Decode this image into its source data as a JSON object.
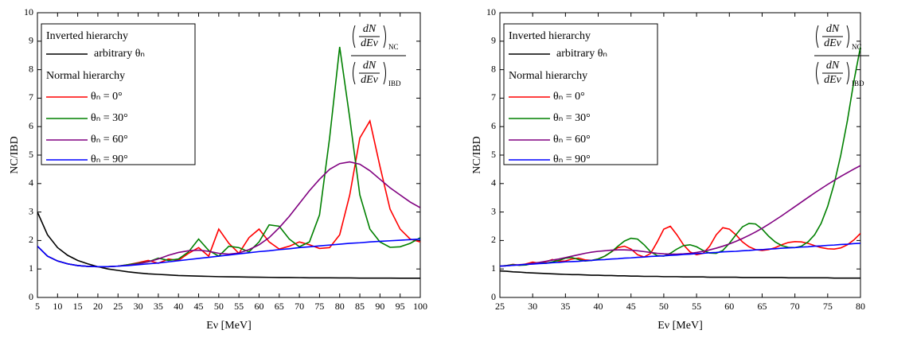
{
  "chart_data": [
    {
      "type": "line",
      "x_label": "Eν [MeV]",
      "y_label": "NC/IBD",
      "legend_headings": [
        "Inverted hierarchy",
        "Normal hierarchy"
      ],
      "annotation": {
        "numerator": {
          "top": "dN",
          "bottom": "dEν",
          "subscript": "NC"
        },
        "denominator": {
          "top": "dN",
          "bottom": "dEν",
          "subscript": "IBD"
        }
      },
      "xlim": [
        5,
        100
      ],
      "ylim": [
        0,
        10
      ],
      "xticks": [
        5,
        10,
        15,
        20,
        25,
        30,
        35,
        40,
        45,
        50,
        55,
        60,
        65,
        70,
        75,
        80,
        85,
        90,
        95,
        100
      ],
      "yticks": [
        0,
        1,
        2,
        3,
        4,
        5,
        6,
        7,
        8,
        9,
        10
      ],
      "x": [
        5,
        7.5,
        10,
        12.5,
        15,
        17.5,
        20,
        22.5,
        25,
        27.5,
        30,
        32.5,
        35,
        37.5,
        40,
        42.5,
        45,
        47.5,
        50,
        52.5,
        55,
        57.5,
        60,
        62.5,
        65,
        67.5,
        70,
        72.5,
        75,
        77.5,
        80,
        82.5,
        85,
        87.5,
        90,
        92.5,
        95,
        97.5,
        100
      ],
      "series": [
        {
          "name": "arbitrary θₙ",
          "color": "#000000",
          "values": [
            3.0,
            2.2,
            1.75,
            1.48,
            1.3,
            1.18,
            1.08,
            1.0,
            0.95,
            0.9,
            0.86,
            0.83,
            0.81,
            0.79,
            0.77,
            0.76,
            0.75,
            0.74,
            0.73,
            0.725,
            0.72,
            0.715,
            0.71,
            0.705,
            0.7,
            0.7,
            0.695,
            0.69,
            0.69,
            0.69,
            0.685,
            0.685,
            0.68,
            0.68,
            0.68,
            0.68,
            0.675,
            0.675,
            0.675
          ]
        },
        {
          "name": "θₙ =  0°",
          "color": "#ff0000",
          "values": [
            1.8,
            1.45,
            1.28,
            1.18,
            1.12,
            1.09,
            1.08,
            1.08,
            1.1,
            1.15,
            1.22,
            1.3,
            1.2,
            1.35,
            1.3,
            1.55,
            1.75,
            1.45,
            2.4,
            1.9,
            1.55,
            2.1,
            2.4,
            1.95,
            1.7,
            1.8,
            1.95,
            1.85,
            1.72,
            1.75,
            2.2,
            3.6,
            5.6,
            6.2,
            4.6,
            3.1,
            2.4,
            2.05,
            1.95
          ]
        },
        {
          "name": "θₙ = 30°",
          "color": "#008000",
          "values": [
            1.8,
            1.45,
            1.28,
            1.18,
            1.12,
            1.09,
            1.08,
            1.08,
            1.1,
            1.15,
            1.2,
            1.25,
            1.38,
            1.3,
            1.35,
            1.6,
            2.05,
            1.65,
            1.45,
            1.8,
            1.75,
            1.6,
            1.95,
            2.55,
            2.5,
            2.05,
            1.78,
            1.95,
            2.9,
            5.6,
            8.8,
            6.3,
            3.6,
            2.4,
            1.95,
            1.76,
            1.78,
            1.9,
            2.1
          ]
        },
        {
          "name": "θₙ = 60°",
          "color": "#800080",
          "values": [
            1.8,
            1.45,
            1.28,
            1.18,
            1.12,
            1.09,
            1.08,
            1.08,
            1.1,
            1.13,
            1.18,
            1.25,
            1.35,
            1.48,
            1.58,
            1.64,
            1.66,
            1.62,
            1.55,
            1.52,
            1.56,
            1.68,
            1.85,
            2.1,
            2.45,
            2.85,
            3.3,
            3.75,
            4.15,
            4.5,
            4.7,
            4.76,
            4.68,
            4.45,
            4.15,
            3.85,
            3.6,
            3.35,
            3.15
          ]
        },
        {
          "name": "θₙ = 90°",
          "color": "#0000ff",
          "values": [
            1.8,
            1.45,
            1.28,
            1.18,
            1.12,
            1.09,
            1.08,
            1.08,
            1.1,
            1.12,
            1.15,
            1.18,
            1.21,
            1.25,
            1.29,
            1.33,
            1.37,
            1.41,
            1.45,
            1.49,
            1.53,
            1.57,
            1.61,
            1.64,
            1.68,
            1.71,
            1.75,
            1.78,
            1.81,
            1.84,
            1.87,
            1.9,
            1.92,
            1.95,
            1.97,
            1.99,
            2.01,
            2.03,
            2.05
          ]
        }
      ]
    },
    {
      "type": "line",
      "x_label": "Eν [MeV]",
      "y_label": "NC/IBD",
      "legend_headings": [
        "Inverted hierarchy",
        "Normal hierarchy"
      ],
      "annotation": {
        "numerator": {
          "top": "dN",
          "bottom": "dEν",
          "subscript": "NC"
        },
        "denominator": {
          "top": "dN",
          "bottom": "dEν",
          "subscript": "IBD"
        }
      },
      "xlim": [
        25,
        80
      ],
      "ylim": [
        0,
        10
      ],
      "xticks": [
        25,
        30,
        35,
        40,
        45,
        50,
        55,
        60,
        65,
        70,
        75,
        80
      ],
      "yticks": [
        0,
        1,
        2,
        3,
        4,
        5,
        6,
        7,
        8,
        9,
        10
      ],
      "x": [
        25,
        26,
        27,
        28,
        29,
        30,
        31,
        32,
        33,
        34,
        35,
        36,
        37,
        38,
        39,
        40,
        41,
        42,
        43,
        44,
        45,
        46,
        47,
        48,
        49,
        50,
        51,
        52,
        53,
        54,
        55,
        56,
        57,
        58,
        59,
        60,
        61,
        62,
        63,
        64,
        65,
        66,
        67,
        68,
        69,
        70,
        71,
        72,
        73,
        74,
        75,
        76,
        77,
        78,
        79,
        80
      ],
      "series": [
        {
          "name": "arbitrary θₙ",
          "color": "#000000",
          "values": [
            0.93,
            0.92,
            0.9,
            0.89,
            0.87,
            0.86,
            0.85,
            0.84,
            0.83,
            0.82,
            0.81,
            0.8,
            0.8,
            0.79,
            0.78,
            0.78,
            0.77,
            0.77,
            0.76,
            0.76,
            0.75,
            0.75,
            0.74,
            0.74,
            0.74,
            0.73,
            0.73,
            0.73,
            0.72,
            0.72,
            0.72,
            0.72,
            0.71,
            0.71,
            0.71,
            0.71,
            0.71,
            0.7,
            0.7,
            0.7,
            0.7,
            0.7,
            0.7,
            0.7,
            0.69,
            0.69,
            0.69,
            0.69,
            0.69,
            0.69,
            0.69,
            0.68,
            0.68,
            0.68,
            0.68,
            0.68
          ]
        },
        {
          "name": "θₙ =  0°",
          "color": "#ff0000",
          "values": [
            1.1,
            1.12,
            1.16,
            1.13,
            1.18,
            1.24,
            1.2,
            1.25,
            1.33,
            1.27,
            1.28,
            1.35,
            1.38,
            1.32,
            1.3,
            1.35,
            1.45,
            1.6,
            1.75,
            1.8,
            1.7,
            1.5,
            1.42,
            1.55,
            1.95,
            2.4,
            2.5,
            2.2,
            1.85,
            1.6,
            1.5,
            1.55,
            1.8,
            2.2,
            2.45,
            2.4,
            2.2,
            1.95,
            1.78,
            1.68,
            1.65,
            1.68,
            1.75,
            1.85,
            1.93,
            1.96,
            1.95,
            1.9,
            1.82,
            1.75,
            1.71,
            1.7,
            1.74,
            1.85,
            2.02,
            2.25
          ]
        },
        {
          "name": "θₙ = 30°",
          "color": "#008000",
          "values": [
            1.1,
            1.12,
            1.15,
            1.13,
            1.14,
            1.2,
            1.22,
            1.2,
            1.25,
            1.3,
            1.38,
            1.4,
            1.33,
            1.28,
            1.3,
            1.35,
            1.45,
            1.6,
            1.8,
            1.98,
            2.08,
            2.05,
            1.85,
            1.6,
            1.47,
            1.45,
            1.55,
            1.7,
            1.82,
            1.85,
            1.78,
            1.65,
            1.56,
            1.55,
            1.65,
            1.9,
            2.2,
            2.48,
            2.6,
            2.58,
            2.4,
            2.15,
            1.95,
            1.82,
            1.76,
            1.75,
            1.8,
            1.95,
            2.2,
            2.6,
            3.2,
            4.0,
            5.0,
            6.2,
            7.6,
            8.8
          ]
        },
        {
          "name": "θₙ = 60°",
          "color": "#800080",
          "values": [
            1.1,
            1.11,
            1.13,
            1.15,
            1.17,
            1.2,
            1.23,
            1.27,
            1.31,
            1.35,
            1.4,
            1.45,
            1.5,
            1.55,
            1.59,
            1.62,
            1.64,
            1.66,
            1.67,
            1.67,
            1.66,
            1.64,
            1.61,
            1.58,
            1.55,
            1.53,
            1.52,
            1.52,
            1.53,
            1.55,
            1.58,
            1.62,
            1.67,
            1.73,
            1.8,
            1.88,
            1.97,
            2.07,
            2.18,
            2.3,
            2.43,
            2.57,
            2.72,
            2.87,
            3.03,
            3.19,
            3.35,
            3.51,
            3.67,
            3.82,
            3.97,
            4.11,
            4.25,
            4.38,
            4.51,
            4.63
          ]
        },
        {
          "name": "θₙ = 90°",
          "color": "#0000ff",
          "values": [
            1.1,
            1.11,
            1.13,
            1.14,
            1.16,
            1.17,
            1.19,
            1.2,
            1.22,
            1.23,
            1.25,
            1.26,
            1.27,
            1.29,
            1.3,
            1.32,
            1.33,
            1.35,
            1.36,
            1.38,
            1.39,
            1.41,
            1.42,
            1.44,
            1.45,
            1.46,
            1.48,
            1.49,
            1.51,
            1.52,
            1.54,
            1.55,
            1.57,
            1.58,
            1.6,
            1.61,
            1.62,
            1.64,
            1.65,
            1.67,
            1.68,
            1.7,
            1.71,
            1.73,
            1.74,
            1.75,
            1.77,
            1.78,
            1.8,
            1.81,
            1.83,
            1.84,
            1.86,
            1.87,
            1.89,
            1.9
          ]
        }
      ]
    }
  ]
}
